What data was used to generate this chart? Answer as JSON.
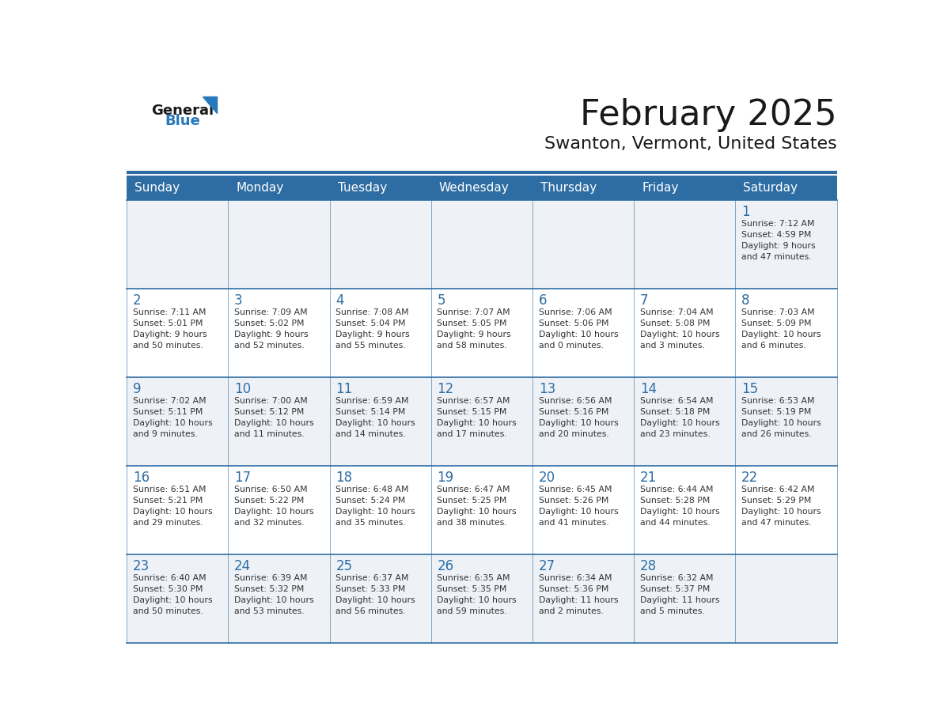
{
  "title": "February 2025",
  "subtitle": "Swanton, Vermont, United States",
  "header_bg": "#2E6DA4",
  "header_text_color": "#FFFFFF",
  "cell_bg_light": "#EEF2F7",
  "cell_bg_white": "#FFFFFF",
  "day_number_color": "#2E6DA4",
  "text_color": "#333333",
  "line_color": "#2E6DA4",
  "days_of_week": [
    "Sunday",
    "Monday",
    "Tuesday",
    "Wednesday",
    "Thursday",
    "Friday",
    "Saturday"
  ],
  "weeks": [
    [
      {
        "day": null,
        "info": null
      },
      {
        "day": null,
        "info": null
      },
      {
        "day": null,
        "info": null
      },
      {
        "day": null,
        "info": null
      },
      {
        "day": null,
        "info": null
      },
      {
        "day": null,
        "info": null
      },
      {
        "day": 1,
        "info": "Sunrise: 7:12 AM\nSunset: 4:59 PM\nDaylight: 9 hours\nand 47 minutes."
      }
    ],
    [
      {
        "day": 2,
        "info": "Sunrise: 7:11 AM\nSunset: 5:01 PM\nDaylight: 9 hours\nand 50 minutes."
      },
      {
        "day": 3,
        "info": "Sunrise: 7:09 AM\nSunset: 5:02 PM\nDaylight: 9 hours\nand 52 minutes."
      },
      {
        "day": 4,
        "info": "Sunrise: 7:08 AM\nSunset: 5:04 PM\nDaylight: 9 hours\nand 55 minutes."
      },
      {
        "day": 5,
        "info": "Sunrise: 7:07 AM\nSunset: 5:05 PM\nDaylight: 9 hours\nand 58 minutes."
      },
      {
        "day": 6,
        "info": "Sunrise: 7:06 AM\nSunset: 5:06 PM\nDaylight: 10 hours\nand 0 minutes."
      },
      {
        "day": 7,
        "info": "Sunrise: 7:04 AM\nSunset: 5:08 PM\nDaylight: 10 hours\nand 3 minutes."
      },
      {
        "day": 8,
        "info": "Sunrise: 7:03 AM\nSunset: 5:09 PM\nDaylight: 10 hours\nand 6 minutes."
      }
    ],
    [
      {
        "day": 9,
        "info": "Sunrise: 7:02 AM\nSunset: 5:11 PM\nDaylight: 10 hours\nand 9 minutes."
      },
      {
        "day": 10,
        "info": "Sunrise: 7:00 AM\nSunset: 5:12 PM\nDaylight: 10 hours\nand 11 minutes."
      },
      {
        "day": 11,
        "info": "Sunrise: 6:59 AM\nSunset: 5:14 PM\nDaylight: 10 hours\nand 14 minutes."
      },
      {
        "day": 12,
        "info": "Sunrise: 6:57 AM\nSunset: 5:15 PM\nDaylight: 10 hours\nand 17 minutes."
      },
      {
        "day": 13,
        "info": "Sunrise: 6:56 AM\nSunset: 5:16 PM\nDaylight: 10 hours\nand 20 minutes."
      },
      {
        "day": 14,
        "info": "Sunrise: 6:54 AM\nSunset: 5:18 PM\nDaylight: 10 hours\nand 23 minutes."
      },
      {
        "day": 15,
        "info": "Sunrise: 6:53 AM\nSunset: 5:19 PM\nDaylight: 10 hours\nand 26 minutes."
      }
    ],
    [
      {
        "day": 16,
        "info": "Sunrise: 6:51 AM\nSunset: 5:21 PM\nDaylight: 10 hours\nand 29 minutes."
      },
      {
        "day": 17,
        "info": "Sunrise: 6:50 AM\nSunset: 5:22 PM\nDaylight: 10 hours\nand 32 minutes."
      },
      {
        "day": 18,
        "info": "Sunrise: 6:48 AM\nSunset: 5:24 PM\nDaylight: 10 hours\nand 35 minutes."
      },
      {
        "day": 19,
        "info": "Sunrise: 6:47 AM\nSunset: 5:25 PM\nDaylight: 10 hours\nand 38 minutes."
      },
      {
        "day": 20,
        "info": "Sunrise: 6:45 AM\nSunset: 5:26 PM\nDaylight: 10 hours\nand 41 minutes."
      },
      {
        "day": 21,
        "info": "Sunrise: 6:44 AM\nSunset: 5:28 PM\nDaylight: 10 hours\nand 44 minutes."
      },
      {
        "day": 22,
        "info": "Sunrise: 6:42 AM\nSunset: 5:29 PM\nDaylight: 10 hours\nand 47 minutes."
      }
    ],
    [
      {
        "day": 23,
        "info": "Sunrise: 6:40 AM\nSunset: 5:30 PM\nDaylight: 10 hours\nand 50 minutes."
      },
      {
        "day": 24,
        "info": "Sunrise: 6:39 AM\nSunset: 5:32 PM\nDaylight: 10 hours\nand 53 minutes."
      },
      {
        "day": 25,
        "info": "Sunrise: 6:37 AM\nSunset: 5:33 PM\nDaylight: 10 hours\nand 56 minutes."
      },
      {
        "day": 26,
        "info": "Sunrise: 6:35 AM\nSunset: 5:35 PM\nDaylight: 10 hours\nand 59 minutes."
      },
      {
        "day": 27,
        "info": "Sunrise: 6:34 AM\nSunset: 5:36 PM\nDaylight: 11 hours\nand 2 minutes."
      },
      {
        "day": 28,
        "info": "Sunrise: 6:32 AM\nSunset: 5:37 PM\nDaylight: 11 hours\nand 5 minutes."
      },
      {
        "day": null,
        "info": null
      }
    ]
  ],
  "logo_general_color": "#1a1a1a",
  "logo_blue_color": "#2878BE",
  "logo_triangle_color": "#2878BE"
}
